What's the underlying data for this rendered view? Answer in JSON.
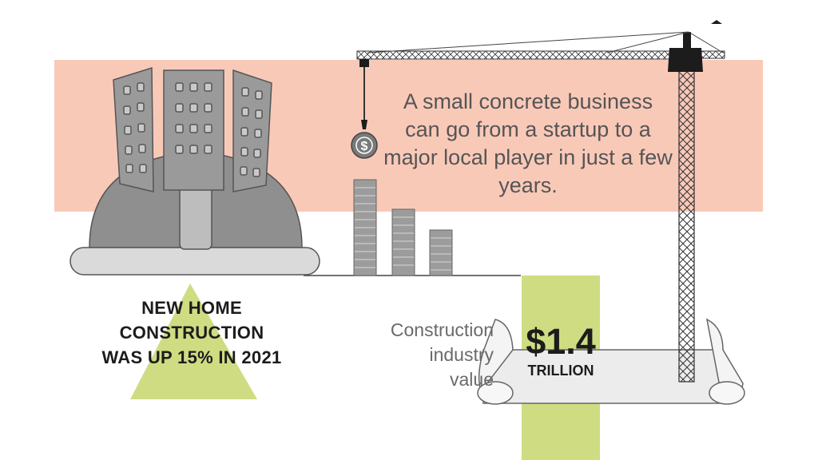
{
  "tagline": "A small concrete business can go from a startup to a major local player in just a few years.",
  "stat_left": {
    "lines": [
      "NEW HOME",
      "CONSTRUCTION",
      "WAS UP 15% IN 2021"
    ]
  },
  "industry": {
    "label_lines": [
      "Construction",
      "industry",
      "value"
    ],
    "value": "$1.4",
    "unit": "TRILLION"
  },
  "coin_symbol": "$",
  "colors": {
    "band": "#f9c9b8",
    "accent_green": "#cfdc82",
    "building_gray": "#9a9a9a",
    "dark": "#1c1c1c"
  },
  "icons": [
    "hard-hat-icon",
    "buildings-icon",
    "crane-icon",
    "dollar-coin-icon",
    "blueprint-scroll-icon",
    "stacked-bars-icon"
  ]
}
